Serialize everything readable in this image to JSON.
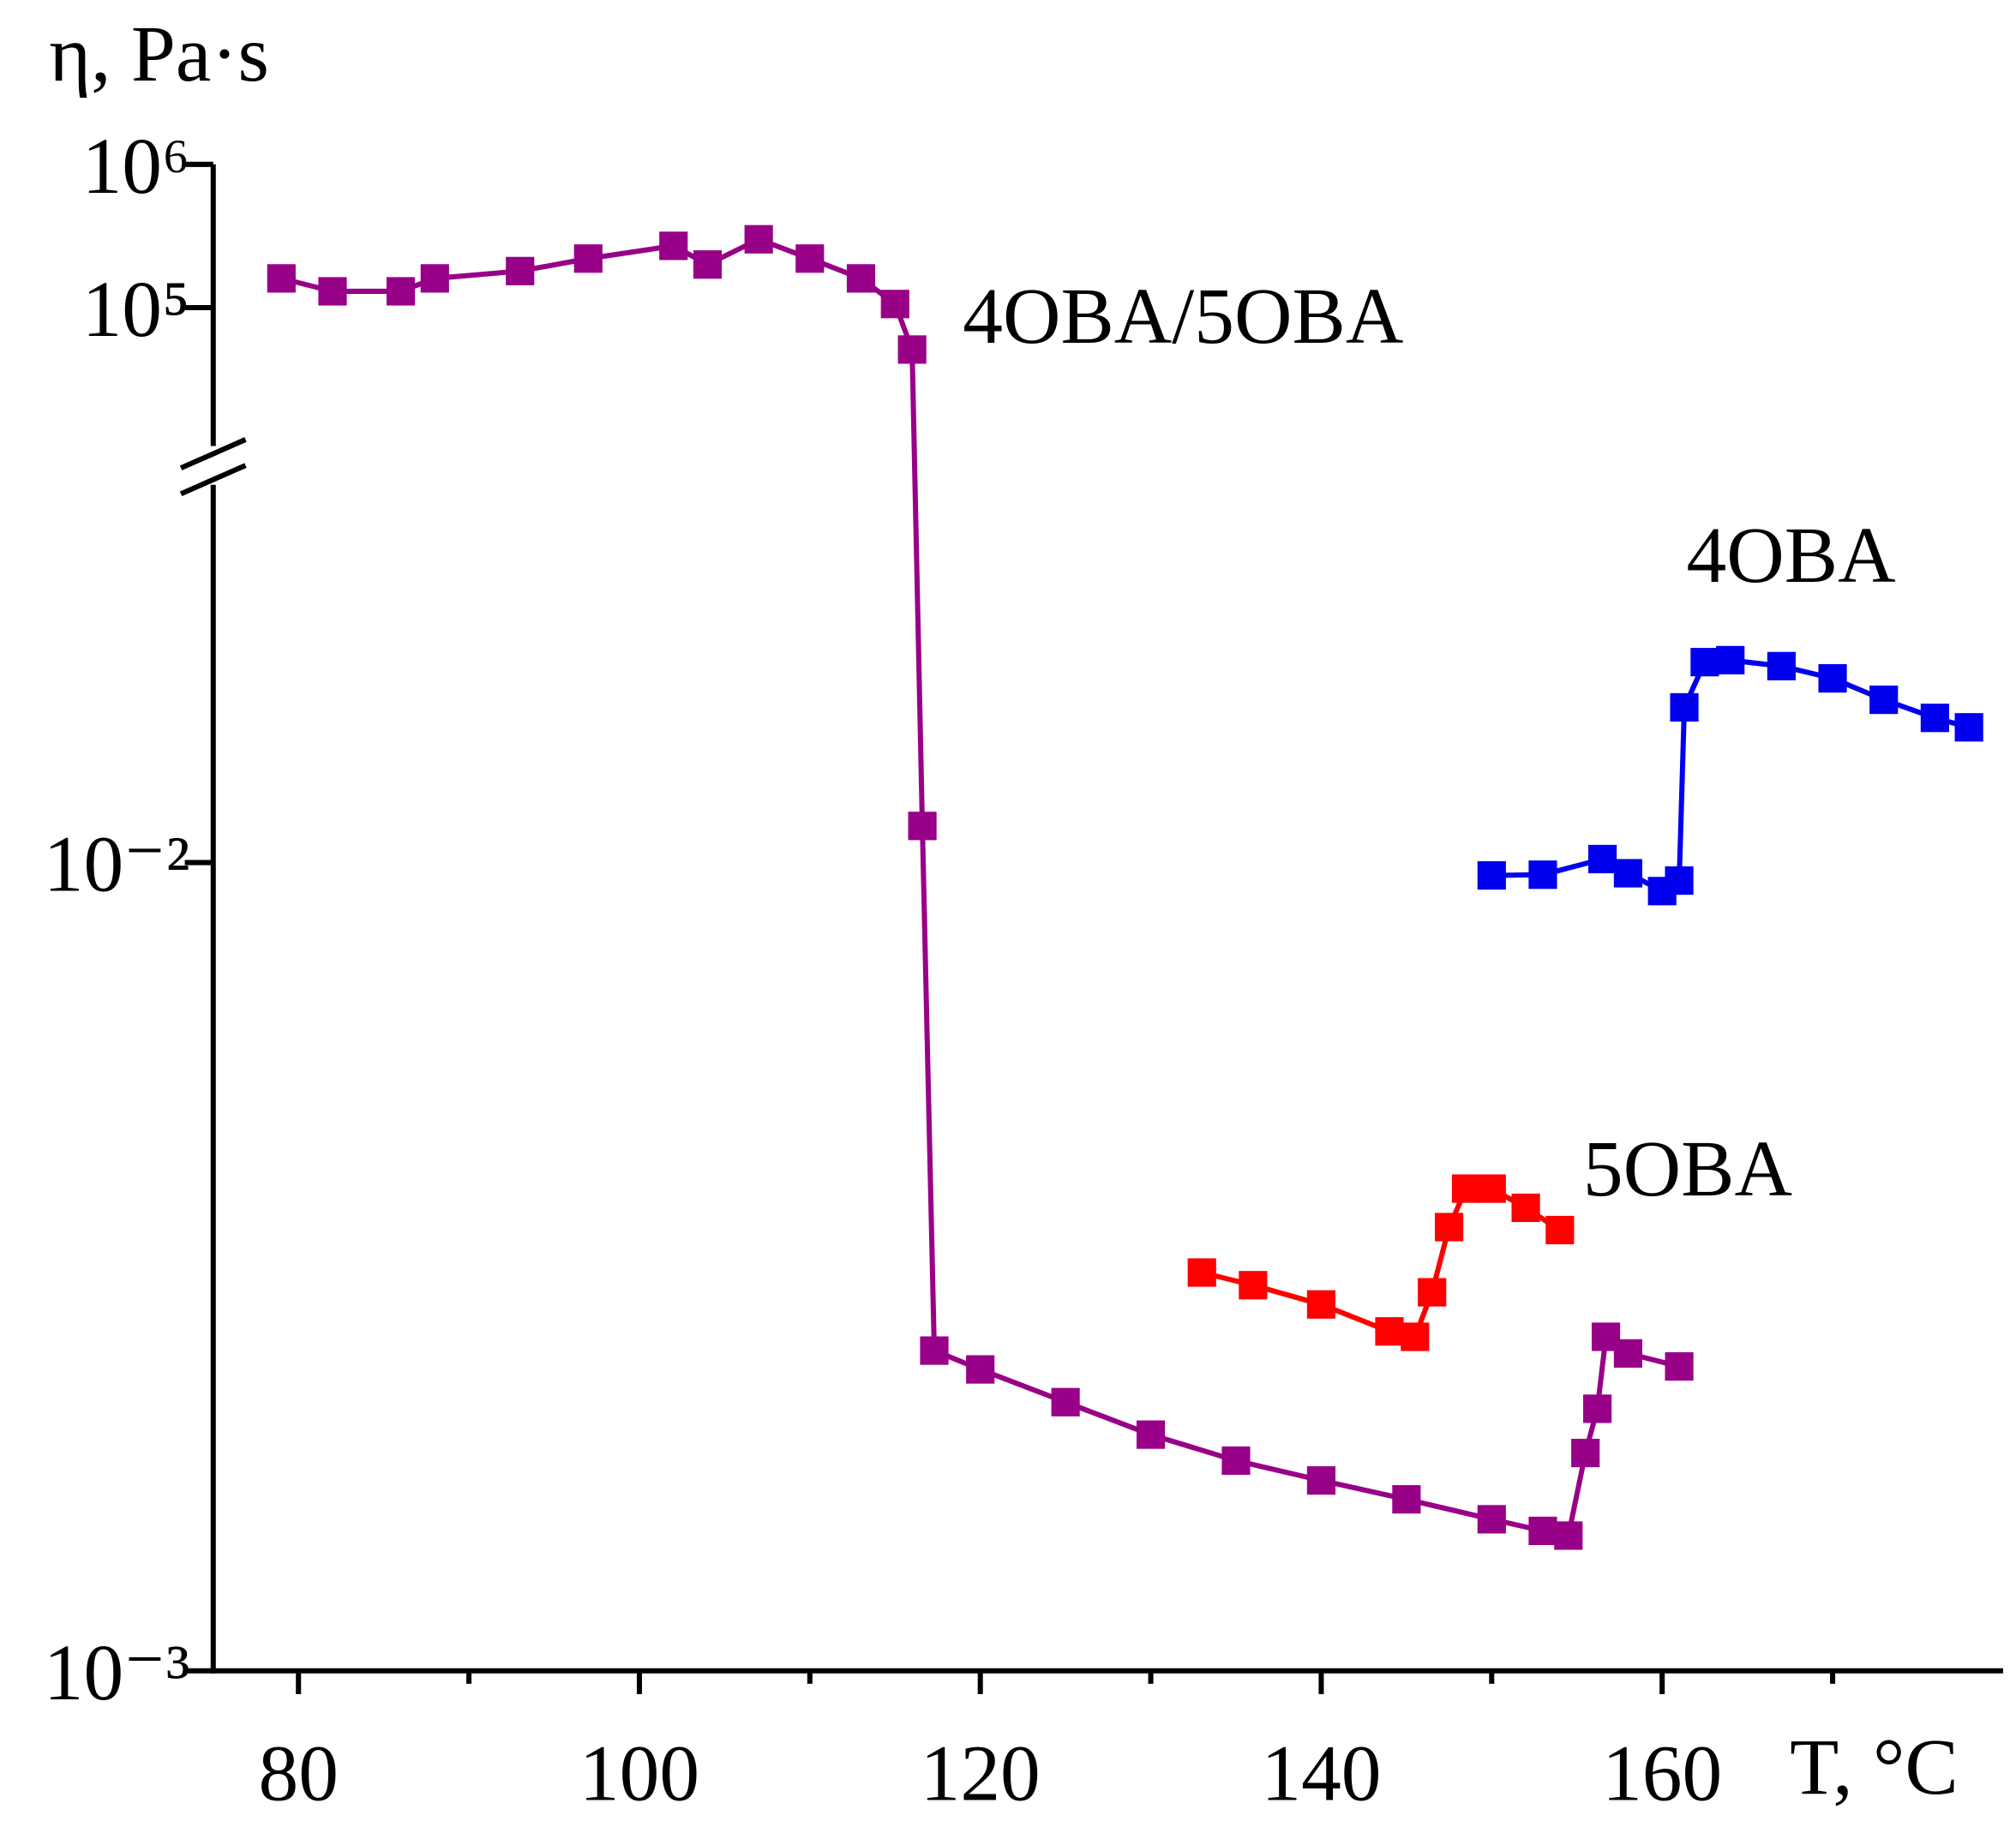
{
  "chart_data": {
    "type": "scatter",
    "y_label": "η, Pa·s",
    "x_label": "T, °C",
    "annotations": [
      "4OBA/5OBA",
      "4OBA",
      "5OBA"
    ],
    "xlim": [
      75,
      180
    ],
    "xticks": [
      80,
      100,
      120,
      140,
      160
    ],
    "xminor": [
      90,
      110,
      130,
      150,
      170
    ],
    "ylog": true,
    "ylim": [
      0.001,
      1000000
    ],
    "ybreak": [
      0.0288,
      12000
    ],
    "yticks": [
      {
        "value": 0.001,
        "label": "10⁻³"
      },
      {
        "value": 0.01,
        "label": "10⁻²"
      },
      {
        "value": 100000,
        "label": "10⁵"
      },
      {
        "value": 1000000,
        "label": "10⁶"
      }
    ],
    "series": [
      {
        "name": "4OBA/5OBA",
        "color": "#990088",
        "x": [
          79,
          82,
          86,
          88,
          93,
          97,
          102,
          104,
          107,
          110,
          113,
          115,
          116,
          116.6,
          117.3,
          120,
          125,
          130,
          135,
          140,
          145,
          150,
          153,
          154.5,
          155.5,
          156.2,
          156.7,
          158,
          161
        ],
        "values": [
          160000,
          130000,
          130000,
          160000,
          180000,
          220000,
          270000,
          200000,
          300000,
          220000,
          160000,
          106000,
          51000,
          0.0111,
          0.00249,
          0.00236,
          0.00215,
          0.00196,
          0.00182,
          0.00172,
          0.00163,
          0.00154,
          0.00149,
          0.00147,
          0.00186,
          0.00211,
          0.00259,
          0.00247,
          0.00238
        ]
      },
      {
        "name": "4OBA",
        "color": "#0000ee",
        "x": [
          150,
          153,
          156.5,
          158,
          160,
          161,
          161.3,
          162.5,
          164,
          167,
          170,
          173,
          176,
          178
        ],
        "values": [
          0.00964,
          0.00966,
          0.0101,
          0.0097,
          0.00922,
          0.0095,
          0.01556,
          0.0177,
          0.0178,
          0.0175,
          0.0169,
          0.0159,
          0.0151,
          0.0147
        ]
      },
      {
        "name": "5OBA",
        "color": "#ff0000",
        "x": [
          133,
          136,
          140,
          144,
          145.5,
          146.5,
          147.5,
          148.5,
          150,
          152,
          154
        ],
        "values": [
          0.00311,
          0.003,
          0.00284,
          0.00263,
          0.00259,
          0.00294,
          0.00354,
          0.00395,
          0.00395,
          0.00374,
          0.00351
        ]
      }
    ]
  }
}
